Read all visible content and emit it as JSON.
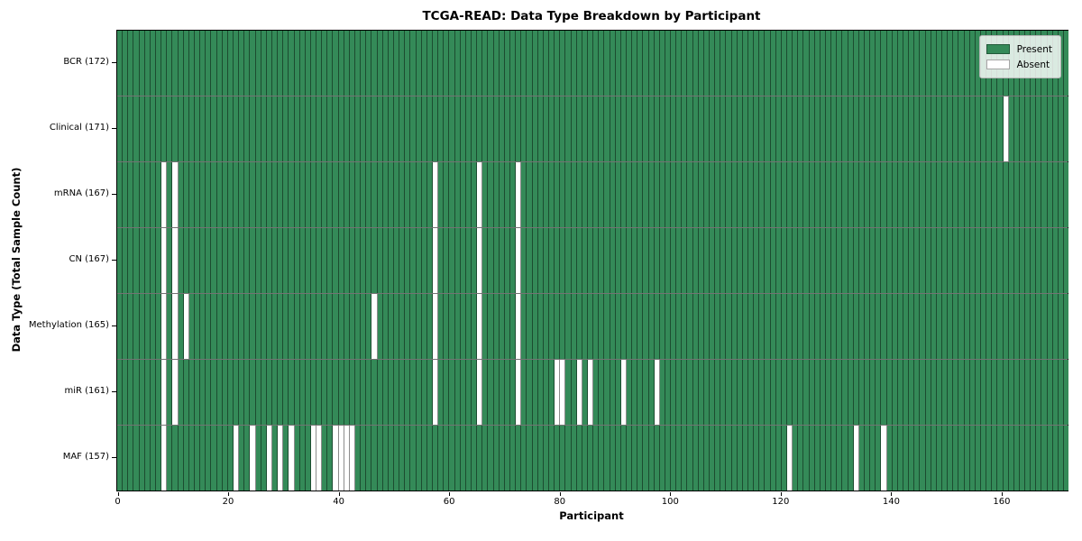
{
  "title": "TCGA-READ: Data Type Breakdown by Participant",
  "chart_data": {
    "type": "heatmap",
    "title": "TCGA-READ: Data Type Breakdown by Participant",
    "xlabel": "Participant",
    "ylabel": "Data Type (Total Sample Count)",
    "xlim": [
      0,
      172
    ],
    "x_ticks": [
      0,
      20,
      40,
      60,
      80,
      100,
      120,
      140,
      160
    ],
    "total_participants": 172,
    "grid": "cell-borders",
    "legend_position": "upper right",
    "colors": {
      "present": "#348a58",
      "absent": "#ffffff"
    },
    "legend": [
      {
        "label": "Present",
        "color": "#348a58"
      },
      {
        "label": "Absent",
        "color": "#ffffff"
      }
    ],
    "rows": [
      {
        "label": "BCR (172)",
        "data_type": "BCR",
        "sample_count": 172,
        "absent_participants": []
      },
      {
        "label": "Clinical (171)",
        "data_type": "Clinical",
        "sample_count": 171,
        "absent_participants": [
          160
        ]
      },
      {
        "label": "mRNA (167)",
        "data_type": "mRNA",
        "sample_count": 167,
        "absent_participants": [
          8,
          10,
          57,
          65,
          72
        ]
      },
      {
        "label": "CN (167)",
        "data_type": "CN",
        "sample_count": 167,
        "absent_participants": [
          8,
          10,
          57,
          65,
          72
        ]
      },
      {
        "label": "Methylation (165)",
        "data_type": "Methylation",
        "sample_count": 165,
        "absent_participants": [
          8,
          10,
          12,
          46,
          57,
          65,
          72
        ]
      },
      {
        "label": "miR (161)",
        "data_type": "miR",
        "sample_count": 161,
        "absent_participants": [
          8,
          10,
          57,
          65,
          72,
          79,
          80,
          83,
          85,
          91,
          97
        ]
      },
      {
        "label": "MAF (157)",
        "data_type": "MAF",
        "sample_count": 157,
        "absent_participants": [
          8,
          21,
          24,
          27,
          29,
          31,
          35,
          36,
          39,
          40,
          41,
          42,
          121,
          133,
          138
        ]
      }
    ]
  }
}
